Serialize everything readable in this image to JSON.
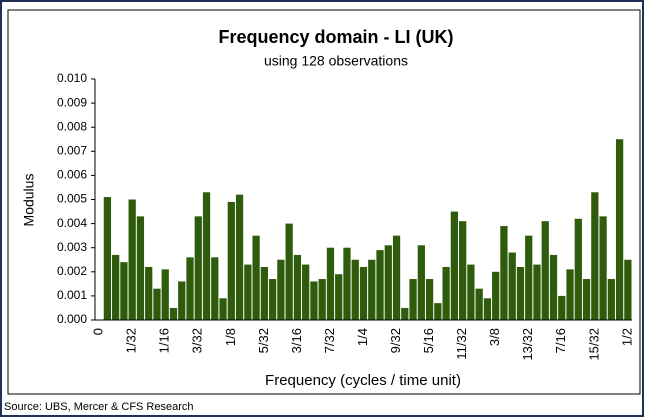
{
  "chart_data": {
    "type": "bar",
    "title": "Frequency domain - LI (UK)",
    "subtitle": "using 128 observations",
    "y_label": "Modulus",
    "x_label": "Frequency (cycles / time unit)",
    "source": "Source: UBS, Mercer & CFS Research",
    "color": "#2f5c0c",
    "grid": false,
    "categories": [
      "0",
      null,
      null,
      null,
      "1/32",
      null,
      null,
      null,
      "1/16",
      null,
      null,
      null,
      "3/32",
      null,
      null,
      null,
      "1/8",
      null,
      null,
      null,
      "5/32",
      null,
      null,
      null,
      "3/16",
      null,
      null,
      null,
      "7/32",
      null,
      null,
      null,
      "1/4",
      null,
      null,
      null,
      "9/32",
      null,
      null,
      null,
      "5/16",
      null,
      null,
      null,
      "11/32",
      null,
      null,
      null,
      "3/8",
      null,
      null,
      null,
      "13/32",
      null,
      null,
      null,
      "7/16",
      null,
      null,
      null,
      "15/32",
      null,
      null,
      null,
      "1/2"
    ],
    "values": [
      null,
      0.0051,
      0.0027,
      0.0024,
      0.005,
      0.0043,
      0.0022,
      0.0013,
      0.0021,
      0.0005,
      0.0016,
      0.0026,
      0.0043,
      0.0053,
      0.0026,
      0.0009,
      0.0049,
      0.0052,
      0.0023,
      0.0035,
      0.0022,
      0.0017,
      0.0025,
      0.004,
      0.0027,
      0.0023,
      0.0016,
      0.0017,
      0.003,
      0.0019,
      0.003,
      0.0025,
      0.0022,
      0.0025,
      0.0029,
      0.0031,
      0.0035,
      0.0005,
      0.0017,
      0.0031,
      0.0017,
      0.0007,
      0.0022,
      0.0045,
      0.0041,
      0.0023,
      0.0013,
      0.0009,
      0.002,
      0.0039,
      0.0028,
      0.0022,
      0.0035,
      0.0023,
      0.0041,
      0.0027,
      0.001,
      0.0021,
      0.0042,
      0.0017,
      0.0053,
      0.0043,
      0.0017,
      0.0075,
      0.0025
    ],
    "ylim": [
      0,
      0.01
    ],
    "yticks": [
      {
        "value": 0,
        "label": "0.000"
      },
      {
        "value": 0.001,
        "label": "0.001"
      },
      {
        "value": 0.002,
        "label": "0.002"
      },
      {
        "value": 0.003,
        "label": "0.003"
      },
      {
        "value": 0.004,
        "label": "0.004"
      },
      {
        "value": 0.005,
        "label": "0.005"
      },
      {
        "value": 0.006,
        "label": "0.006"
      },
      {
        "value": 0.007,
        "label": "0.007"
      },
      {
        "value": 0.008,
        "label": "0.008"
      },
      {
        "value": 0.009,
        "label": "0.009"
      },
      {
        "value": 0.01,
        "label": "0.010"
      }
    ]
  }
}
